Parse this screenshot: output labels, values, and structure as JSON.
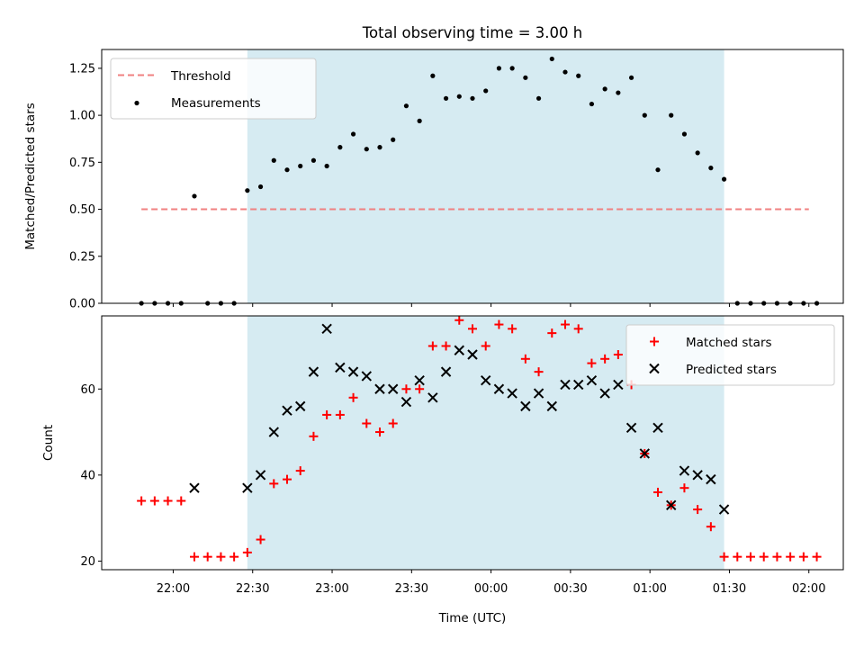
{
  "chart_data": [
    {
      "type": "scatter",
      "title": "Total observing time = 3.00 h",
      "xlabel": "",
      "ylabel": "Matched/Predicted stars",
      "ylim": [
        0,
        1.35
      ],
      "yticks": [
        "0.00",
        "0.25",
        "0.50",
        "0.75",
        "1.00",
        "1.25"
      ],
      "x_unit": "minutes",
      "shaded_region": [
        28,
        208
      ],
      "legend": "upper left",
      "threshold": {
        "name": "Threshold",
        "value": 0.5,
        "x_range": [
          -12,
          240
        ],
        "color": "#f08080",
        "style": "dashed"
      },
      "series": [
        {
          "name": "Measurements",
          "color": "#000000",
          "points": [
            [
              -12,
              0
            ],
            [
              -7,
              0
            ],
            [
              -2,
              0
            ],
            [
              3,
              0
            ],
            [
              8,
              0.57
            ],
            [
              13,
              0
            ],
            [
              18,
              0
            ],
            [
              23,
              0
            ],
            [
              28,
              0.6
            ],
            [
              33,
              0.62
            ],
            [
              38,
              0.76
            ],
            [
              43,
              0.71
            ],
            [
              48,
              0.73
            ],
            [
              53,
              0.76
            ],
            [
              58,
              0.73
            ],
            [
              63,
              0.83
            ],
            [
              68,
              0.9
            ],
            [
              73,
              0.82
            ],
            [
              78,
              0.83
            ],
            [
              83,
              0.87
            ],
            [
              88,
              1.05
            ],
            [
              93,
              0.97
            ],
            [
              98,
              1.21
            ],
            [
              103,
              1.09
            ],
            [
              108,
              1.1
            ],
            [
              113,
              1.09
            ],
            [
              118,
              1.13
            ],
            [
              123,
              1.25
            ],
            [
              128,
              1.25
            ],
            [
              133,
              1.2
            ],
            [
              138,
              1.09
            ],
            [
              143,
              1.3
            ],
            [
              148,
              1.23
            ],
            [
              153,
              1.21
            ],
            [
              158,
              1.06
            ],
            [
              163,
              1.14
            ],
            [
              168,
              1.12
            ],
            [
              173,
              1.2
            ],
            [
              178,
              1.0
            ],
            [
              183,
              0.71
            ],
            [
              188,
              1.0
            ],
            [
              193,
              0.9
            ],
            [
              198,
              0.8
            ],
            [
              203,
              0.72
            ],
            [
              208,
              0.66
            ],
            [
              213,
              0
            ],
            [
              218,
              0
            ],
            [
              223,
              0
            ],
            [
              228,
              0
            ],
            [
              233,
              0
            ],
            [
              238,
              0
            ],
            [
              243,
              0
            ]
          ]
        }
      ]
    },
    {
      "type": "scatter",
      "title": "",
      "xlabel": "Time (UTC)",
      "ylabel": "Count",
      "ylim": [
        18,
        77
      ],
      "yticks": [
        "20",
        "40",
        "60"
      ],
      "xticks": [
        "22:00",
        "22:30",
        "23:00",
        "23:30",
        "00:00",
        "00:30",
        "01:00",
        "01:30",
        "02:00"
      ],
      "x_unit": "minutes",
      "shaded_region": [
        28,
        208
      ],
      "legend": "upper right",
      "series": [
        {
          "name": "Matched stars",
          "color": "#ff0000",
          "marker": "+",
          "points": [
            [
              -12,
              34
            ],
            [
              -7,
              34
            ],
            [
              -2,
              34
            ],
            [
              3,
              34
            ],
            [
              8,
              21
            ],
            [
              13,
              21
            ],
            [
              18,
              21
            ],
            [
              23,
              21
            ],
            [
              28,
              22
            ],
            [
              33,
              25
            ],
            [
              38,
              38
            ],
            [
              43,
              39
            ],
            [
              48,
              41
            ],
            [
              53,
              49
            ],
            [
              58,
              54
            ],
            [
              63,
              54
            ],
            [
              68,
              58
            ],
            [
              73,
              52
            ],
            [
              78,
              50
            ],
            [
              83,
              52
            ],
            [
              88,
              60
            ],
            [
              93,
              60
            ],
            [
              98,
              70
            ],
            [
              103,
              70
            ],
            [
              108,
              76
            ],
            [
              113,
              74
            ],
            [
              118,
              70
            ],
            [
              123,
              75
            ],
            [
              128,
              74
            ],
            [
              133,
              67
            ],
            [
              138,
              64
            ],
            [
              143,
              73
            ],
            [
              148,
              75
            ],
            [
              153,
              74
            ],
            [
              158,
              66
            ],
            [
              163,
              67
            ],
            [
              168,
              68
            ],
            [
              173,
              61
            ],
            [
              178,
              45
            ],
            [
              183,
              36
            ],
            [
              188,
              33
            ],
            [
              193,
              37
            ],
            [
              198,
              32
            ],
            [
              203,
              28
            ],
            [
              208,
              21
            ],
            [
              213,
              21
            ],
            [
              218,
              21
            ],
            [
              223,
              21
            ],
            [
              228,
              21
            ],
            [
              233,
              21
            ],
            [
              238,
              21
            ],
            [
              243,
              21
            ]
          ]
        },
        {
          "name": "Predicted stars",
          "color": "#000000",
          "marker": "x",
          "points": [
            [
              8,
              37
            ],
            [
              28,
              37
            ],
            [
              33,
              40
            ],
            [
              38,
              50
            ],
            [
              43,
              55
            ],
            [
              48,
              56
            ],
            [
              53,
              64
            ],
            [
              58,
              74
            ],
            [
              63,
              65
            ],
            [
              68,
              64
            ],
            [
              73,
              63
            ],
            [
              78,
              60
            ],
            [
              83,
              60
            ],
            [
              88,
              57
            ],
            [
              93,
              62
            ],
            [
              98,
              58
            ],
            [
              103,
              64
            ],
            [
              108,
              69
            ],
            [
              113,
              68
            ],
            [
              118,
              62
            ],
            [
              123,
              60
            ],
            [
              128,
              59
            ],
            [
              133,
              56
            ],
            [
              138,
              59
            ],
            [
              143,
              56
            ],
            [
              148,
              61
            ],
            [
              153,
              61
            ],
            [
              158,
              62
            ],
            [
              163,
              59
            ],
            [
              168,
              61
            ],
            [
              173,
              51
            ],
            [
              178,
              45
            ],
            [
              183,
              51
            ],
            [
              188,
              33
            ],
            [
              193,
              41
            ],
            [
              198,
              40
            ],
            [
              203,
              39
            ],
            [
              208,
              32
            ]
          ]
        }
      ]
    }
  ]
}
